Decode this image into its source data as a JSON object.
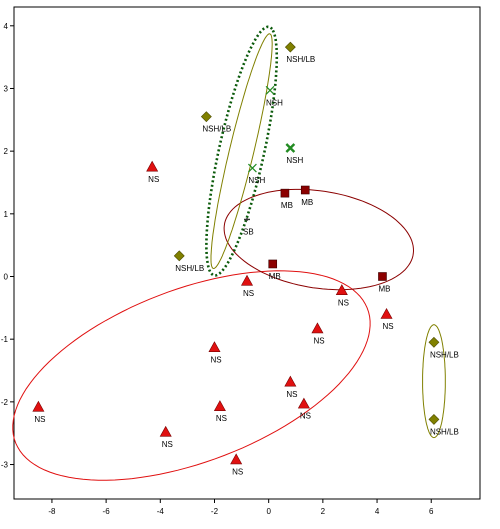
{
  "chart_data": {
    "type": "scatter",
    "title": "",
    "xlabel": "",
    "ylabel": "",
    "xlim": [
      -9.4,
      7.8
    ],
    "ylim": [
      -3.55,
      4.3
    ],
    "grid": false,
    "x_ticks": [
      -8,
      -6,
      -4,
      -2,
      0,
      2,
      4,
      6
    ],
    "y_ticks": [
      -3,
      -2,
      -1,
      0,
      1,
      2,
      3,
      4
    ],
    "tick_labels_x": [
      "-8",
      "-6",
      "-4",
      "-2",
      "0",
      "2",
      "4",
      "6"
    ],
    "tick_labels_y": [
      "-3",
      "-2",
      "-1",
      "0",
      "1",
      "2",
      "3",
      "4"
    ],
    "colors": {
      "NS": "#e01010",
      "MB": "#8b0000",
      "NSH": "#228b22",
      "NSH/LB": "#808000",
      "SB": "#333333"
    },
    "series": [
      {
        "group": "NS",
        "marker": "triangle",
        "points": [
          {
            "x": -4.3,
            "y": 1.75,
            "label": "NS"
          },
          {
            "x": -0.8,
            "y": -0.07,
            "label": "NS"
          },
          {
            "x": 2.7,
            "y": -0.22,
            "label": "NS"
          },
          {
            "x": 4.35,
            "y": -0.6,
            "label": "NS"
          },
          {
            "x": 1.8,
            "y": -0.83,
            "label": "NS"
          },
          {
            "x": -2.0,
            "y": -1.13,
            "label": "NS"
          },
          {
            "x": 0.8,
            "y": -1.68,
            "label": "NS"
          },
          {
            "x": -1.8,
            "y": -2.07,
            "label": "NS"
          },
          {
            "x": 1.3,
            "y": -2.03,
            "label": "NS"
          },
          {
            "x": -8.5,
            "y": -2.08,
            "label": "NS"
          },
          {
            "x": -3.8,
            "y": -2.48,
            "label": "NS"
          },
          {
            "x": -1.2,
            "y": -2.92,
            "label": "NS"
          }
        ]
      },
      {
        "group": "MB",
        "marker": "square",
        "points": [
          {
            "x": 0.6,
            "y": 1.33,
            "label": "MB"
          },
          {
            "x": 1.35,
            "y": 1.38,
            "label": "MB"
          },
          {
            "x": 0.15,
            "y": 0.2,
            "label": "MB"
          },
          {
            "x": 4.2,
            "y": 0.0,
            "label": "MB"
          }
        ]
      },
      {
        "group": "NSH",
        "marker": "cross",
        "points": [
          {
            "x": 0.05,
            "y": 2.97,
            "label": "NSH"
          },
          {
            "x": 0.8,
            "y": 2.05,
            "label": "NSH"
          },
          {
            "x": -0.6,
            "y": 1.73,
            "label": "NSH"
          }
        ]
      },
      {
        "group": "NSH/LB",
        "marker": "diamond",
        "points": [
          {
            "x": 0.8,
            "y": 3.66,
            "label": "NSH/LB"
          },
          {
            "x": -2.3,
            "y": 2.55,
            "label": "NSH/LB"
          },
          {
            "x": -3.3,
            "y": 0.33,
            "label": "NSH/LB"
          },
          {
            "x": 6.1,
            "y": -1.05,
            "label": "NSH/LB"
          },
          {
            "x": 6.1,
            "y": -2.28,
            "label": "NSH/LB"
          }
        ]
      },
      {
        "group": "SB",
        "marker": "small",
        "points": [
          {
            "x": -0.8,
            "y": 0.91,
            "label": "SB"
          }
        ]
      }
    ],
    "ellipses": [
      {
        "group": "NS",
        "cx": -2.85,
        "cy": -1.58,
        "rx": 6.65,
        "ry": 1.44,
        "angle_deg": 7.5,
        "color": "#e01010",
        "style": "solid"
      },
      {
        "group": "MB",
        "cx": 1.85,
        "cy": 0.59,
        "rx": 3.5,
        "ry": 0.78,
        "angle_deg": -3,
        "color": "#8b0000",
        "style": "solid"
      },
      {
        "group": "NSH/LB",
        "cx": -1.0,
        "cy": 2.0,
        "rx": 2.15,
        "ry": 0.4,
        "angle_deg": 60,
        "color": "#808000",
        "style": "solid"
      },
      {
        "group": "NSH/LB",
        "cx": 6.1,
        "cy": -1.67,
        "rx": 0.42,
        "ry": 0.9,
        "angle_deg": 0,
        "color": "#808000",
        "style": "solid"
      },
      {
        "group": "NSH",
        "cx": -1.0,
        "cy": 2.0,
        "rx": 2.25,
        "ry": 0.75,
        "angle_deg": 60,
        "color": "#0b5a0b",
        "style": "dotted"
      }
    ]
  }
}
